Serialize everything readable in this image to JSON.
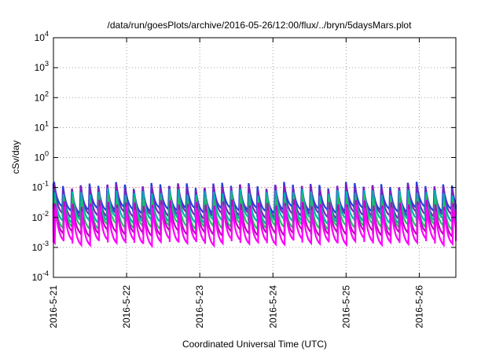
{
  "chart_data": {
    "type": "line",
    "title": "/data/run/goesPlots/archive/2016-05-26/12:00/flux/../bryn/5daysMars.plot",
    "xlabel": "Coordinated Universal Time (UTC)",
    "ylabel": "cSv/day",
    "yscale": "log",
    "ylim": [
      0.0001,
      10000
    ],
    "yticks": [
      {
        "exp": "-4",
        "value": 0.0001
      },
      {
        "exp": "-3",
        "value": 0.001
      },
      {
        "exp": "-2",
        "value": 0.01
      },
      {
        "exp": "-1",
        "value": 0.1
      },
      {
        "exp": "0",
        "value": 1
      },
      {
        "exp": "1",
        "value": 10
      },
      {
        "exp": "2",
        "value": 100
      },
      {
        "exp": "3",
        "value": 1000
      },
      {
        "exp": "4",
        "value": 10000
      }
    ],
    "ytick_base": "10",
    "xlim": [
      "2016-05-21 00:00",
      "2016-05-26 12:00"
    ],
    "xticks": [
      "2016-5-21",
      "2016-5-22",
      "2016-5-23",
      "2016-5-24",
      "2016-5-25",
      "2016-5-26"
    ],
    "grid": true,
    "legend": "none",
    "reference_line": 0.1,
    "pulse_period_hours": 2.9,
    "series": [
      {
        "color": "#2040e0",
        "peak": 0.12,
        "trough": 0.018
      },
      {
        "color": "#8020c0",
        "peak": 0.105,
        "trough": 0.012
      },
      {
        "color": "#00b0b0",
        "peak": 0.07,
        "trough": 0.008
      },
      {
        "color": "#20c060",
        "peak": 0.045,
        "trough": 0.005
      },
      {
        "color": "#c000c0",
        "peak": 0.03,
        "trough": 0.003
      },
      {
        "color": "#ff00ff",
        "peak": 0.02,
        "trough": 0.0015
      }
    ]
  }
}
